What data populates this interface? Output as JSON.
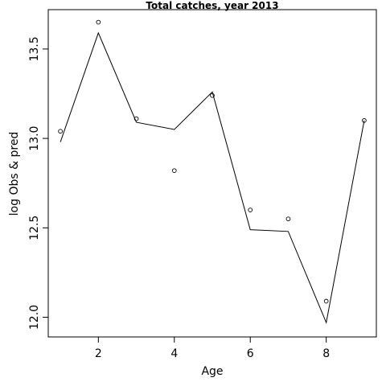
{
  "chart_data": {
    "type": "line",
    "title": "Total catches, year 2013",
    "xlabel": "Age",
    "ylabel": "log Obs & pred",
    "xlim": [
      0.68,
      9.32
    ],
    "ylim": [
      11.89,
      13.72
    ],
    "x_ticks": [
      2,
      4,
      6,
      8
    ],
    "y_ticks": [
      12.0,
      12.5,
      13.0,
      13.5
    ],
    "x_tick_labels": [
      "2",
      "4",
      "6",
      "8"
    ],
    "y_tick_labels": [
      "12.0",
      "12.5",
      "13.0",
      "13.5"
    ],
    "grid": false,
    "legend": "none",
    "series": [
      {
        "style": "points",
        "x": [
          1,
          2,
          3,
          4,
          5,
          6,
          7,
          8,
          9
        ],
        "y": [
          13.04,
          13.65,
          13.11,
          12.82,
          13.24,
          12.6,
          12.55,
          12.09,
          13.1
        ]
      },
      {
        "style": "line",
        "x": [
          1,
          2,
          3,
          4,
          5,
          6,
          7,
          8,
          9
        ],
        "y": [
          12.98,
          13.59,
          13.09,
          13.05,
          13.26,
          12.49,
          12.48,
          11.97,
          13.1
        ]
      }
    ]
  }
}
